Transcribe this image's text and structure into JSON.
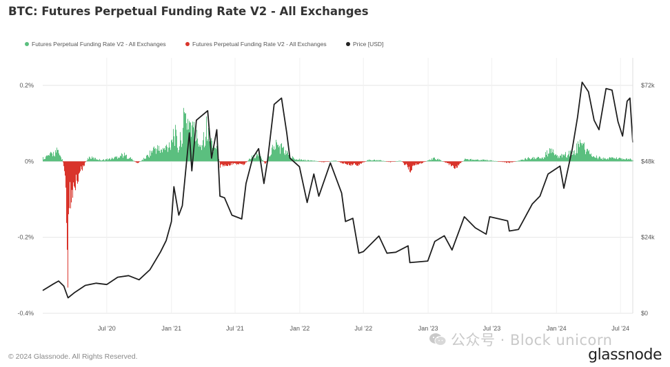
{
  "page": {
    "title": "BTC: Futures Perpetual Funding Rate V2 - All Exchanges",
    "copyright": "© 2024 Glassnode. All Rights Reserved.",
    "brand": "glassnode",
    "watermark": "公众号 · Block unicorn"
  },
  "legend": [
    {
      "label": "Futures Perpetual Funding Rate V2 - All Exchanges",
      "color": "#5bbf7f"
    },
    {
      "label": "Futures Perpetual Funding Rate V2 - All Exchanges",
      "color": "#d9342b"
    },
    {
      "label": "Price [USD]",
      "color": "#222222"
    }
  ],
  "chart_data": {
    "type": "bar+line",
    "left_axis": {
      "ticks": [
        0.2,
        0,
        -0.2,
        -0.4
      ],
      "tick_labels": [
        "0.2%",
        "0%",
        "-0.2%",
        "-0.4%"
      ],
      "ylim": [
        -0.4,
        0.2
      ]
    },
    "right_axis": {
      "ticks": [
        72000,
        48000,
        24000,
        0
      ],
      "tick_labels": [
        "$72k",
        "$48k",
        "$24k",
        "$0"
      ],
      "ylim": [
        0,
        72000
      ]
    },
    "x_ticks": [
      {
        "label": "Jul '20",
        "date": "2020-07-01"
      },
      {
        "label": "Jan '21",
        "date": "2021-01-01"
      },
      {
        "label": "Jul '21",
        "date": "2021-07-01"
      },
      {
        "label": "Jan '22",
        "date": "2022-01-01"
      },
      {
        "label": "Jul '22",
        "date": "2022-07-01"
      },
      {
        "label": "Jan '23",
        "date": "2023-01-01"
      },
      {
        "label": "Jul '23",
        "date": "2023-07-01"
      },
      {
        "label": "Jan '24",
        "date": "2024-01-01"
      },
      {
        "label": "Jul '24",
        "date": "2024-07-01"
      }
    ],
    "x_range": [
      "2020-01-01",
      "2024-08-05"
    ],
    "funding_rate_pct": [
      [
        "2020-01-01",
        0.01
      ],
      [
        "2020-01-20",
        0.018
      ],
      [
        "2020-02-10",
        0.03
      ],
      [
        "2020-02-25",
        0.005
      ],
      [
        "2020-03-05",
        -0.04
      ],
      [
        "2020-03-12",
        -0.28
      ],
      [
        "2020-03-14",
        -0.12
      ],
      [
        "2020-03-25",
        -0.08
      ],
      [
        "2020-04-15",
        -0.03
      ],
      [
        "2020-05-10",
        0.012
      ],
      [
        "2020-06-15",
        0.004
      ],
      [
        "2020-07-15",
        0.008
      ],
      [
        "2020-08-15",
        0.02
      ],
      [
        "2020-09-05",
        0.01
      ],
      [
        "2020-09-25",
        -0.006
      ],
      [
        "2020-10-20",
        0.012
      ],
      [
        "2020-11-15",
        0.04
      ],
      [
        "2020-12-05",
        0.03
      ],
      [
        "2020-12-25",
        0.05
      ],
      [
        "2021-01-08",
        0.09
      ],
      [
        "2021-01-20",
        0.035
      ],
      [
        "2021-02-08",
        0.13
      ],
      [
        "2021-02-20",
        0.12
      ],
      [
        "2021-03-10",
        0.075
      ],
      [
        "2021-03-25",
        0.05
      ],
      [
        "2021-04-10",
        0.1
      ],
      [
        "2021-04-18",
        0.06
      ],
      [
        "2021-05-10",
        0.04
      ],
      [
        "2021-05-19",
        -0.015
      ],
      [
        "2021-06-10",
        -0.01
      ],
      [
        "2021-07-05",
        -0.008
      ],
      [
        "2021-07-25",
        -0.01
      ],
      [
        "2021-08-15",
        0.012
      ],
      [
        "2021-09-05",
        0.02
      ],
      [
        "2021-09-25",
        -0.008
      ],
      [
        "2021-10-20",
        0.05
      ],
      [
        "2021-11-10",
        0.04
      ],
      [
        "2021-12-05",
        0.012
      ],
      [
        "2022-01-10",
        0.004
      ],
      [
        "2022-02-10",
        0.002
      ],
      [
        "2022-03-10",
        -0.003
      ],
      [
        "2022-04-10",
        0.003
      ],
      [
        "2022-05-10",
        -0.008
      ],
      [
        "2022-06-15",
        -0.01
      ],
      [
        "2022-07-15",
        0.004
      ],
      [
        "2022-08-15",
        0.003
      ],
      [
        "2022-09-15",
        -0.002
      ],
      [
        "2022-10-15",
        0.002
      ],
      [
        "2022-11-10",
        -0.025
      ],
      [
        "2022-11-20",
        -0.012
      ],
      [
        "2022-12-15",
        -0.004
      ],
      [
        "2023-01-20",
        0.01
      ],
      [
        "2023-03-10",
        -0.012
      ],
      [
        "2023-03-20",
        -0.018
      ],
      [
        "2023-04-15",
        0.006
      ],
      [
        "2023-06-15",
        0.004
      ],
      [
        "2023-08-18",
        -0.004
      ],
      [
        "2023-09-15",
        0.002
      ],
      [
        "2023-10-25",
        0.012
      ],
      [
        "2023-11-20",
        0.008
      ],
      [
        "2023-12-10",
        0.03
      ],
      [
        "2024-01-10",
        0.015
      ],
      [
        "2024-02-15",
        0.025
      ],
      [
        "2024-03-05",
        0.05
      ],
      [
        "2024-03-14",
        0.045
      ],
      [
        "2024-04-10",
        0.015
      ],
      [
        "2024-05-10",
        0.008
      ],
      [
        "2024-06-10",
        0.01
      ],
      [
        "2024-07-10",
        0.006
      ],
      [
        "2024-08-05",
        0.006
      ]
    ],
    "price_usd": [
      [
        "2020-01-01",
        7200
      ],
      [
        "2020-02-01",
        9300
      ],
      [
        "2020-02-15",
        10200
      ],
      [
        "2020-03-01",
        8600
      ],
      [
        "2020-03-13",
        4900
      ],
      [
        "2020-04-01",
        6600
      ],
      [
        "2020-05-01",
        8800
      ],
      [
        "2020-06-01",
        9500
      ],
      [
        "2020-07-01",
        9100
      ],
      [
        "2020-08-01",
        11400
      ],
      [
        "2020-09-01",
        11900
      ],
      [
        "2020-10-01",
        10600
      ],
      [
        "2020-11-01",
        13800
      ],
      [
        "2020-12-01",
        19400
      ],
      [
        "2020-12-17",
        23000
      ],
      [
        "2021-01-01",
        29000
      ],
      [
        "2021-01-08",
        40000
      ],
      [
        "2021-01-22",
        31000
      ],
      [
        "2021-02-01",
        34000
      ],
      [
        "2021-02-21",
        57000
      ],
      [
        "2021-02-28",
        45000
      ],
      [
        "2021-03-13",
        61000
      ],
      [
        "2021-04-14",
        64000
      ],
      [
        "2021-04-25",
        49000
      ],
      [
        "2021-05-10",
        58000
      ],
      [
        "2021-05-19",
        37000
      ],
      [
        "2021-06-01",
        36500
      ],
      [
        "2021-06-22",
        31000
      ],
      [
        "2021-07-20",
        29800
      ],
      [
        "2021-08-01",
        41000
      ],
      [
        "2021-08-20",
        49000
      ],
      [
        "2021-09-06",
        52000
      ],
      [
        "2021-09-21",
        41000
      ],
      [
        "2021-10-01",
        48000
      ],
      [
        "2021-10-20",
        66000
      ],
      [
        "2021-11-10",
        68000
      ],
      [
        "2021-11-25",
        57000
      ],
      [
        "2021-12-04",
        49000
      ],
      [
        "2021-12-31",
        46300
      ],
      [
        "2022-01-22",
        35000
      ],
      [
        "2022-02-10",
        44000
      ],
      [
        "2022-02-24",
        37000
      ],
      [
        "2022-03-29",
        47500
      ],
      [
        "2022-04-30",
        38000
      ],
      [
        "2022-05-11",
        29000
      ],
      [
        "2022-06-01",
        30000
      ],
      [
        "2022-06-18",
        19000
      ],
      [
        "2022-07-01",
        19500
      ],
      [
        "2022-08-14",
        24400
      ],
      [
        "2022-09-06",
        19000
      ],
      [
        "2022-10-01",
        19300
      ],
      [
        "2022-11-05",
        21300
      ],
      [
        "2022-11-10",
        16000
      ],
      [
        "2022-12-31",
        16500
      ],
      [
        "2023-01-20",
        22700
      ],
      [
        "2023-02-16",
        24500
      ],
      [
        "2023-03-10",
        20000
      ],
      [
        "2023-04-14",
        30500
      ],
      [
        "2023-05-15",
        27000
      ],
      [
        "2023-06-15",
        25000
      ],
      [
        "2023-06-25",
        30500
      ],
      [
        "2023-08-15",
        29200
      ],
      [
        "2023-08-20",
        26000
      ],
      [
        "2023-09-15",
        26500
      ],
      [
        "2023-10-24",
        34500
      ],
      [
        "2023-11-15",
        37000
      ],
      [
        "2023-12-08",
        44000
      ],
      [
        "2024-01-11",
        46500
      ],
      [
        "2024-01-22",
        39500
      ],
      [
        "2024-02-15",
        52000
      ],
      [
        "2024-03-01",
        62000
      ],
      [
        "2024-03-14",
        73000
      ],
      [
        "2024-04-01",
        70000
      ],
      [
        "2024-04-17",
        61000
      ],
      [
        "2024-05-01",
        58000
      ],
      [
        "2024-05-21",
        71000
      ],
      [
        "2024-06-07",
        70500
      ],
      [
        "2024-06-24",
        60500
      ],
      [
        "2024-07-07",
        56000
      ],
      [
        "2024-07-20",
        67000
      ],
      [
        "2024-07-28",
        68000
      ],
      [
        "2024-08-05",
        54000
      ]
    ]
  }
}
